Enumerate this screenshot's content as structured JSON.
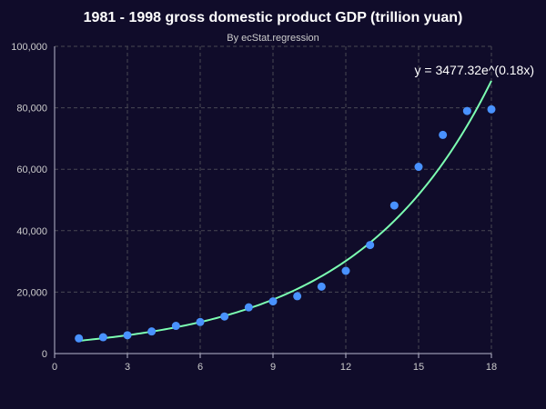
{
  "chart_data": {
    "type": "scatter",
    "title": "1981 - 1998 gross domestic product GDP (trillion yuan)",
    "subtitle": "By ecStat.regression",
    "xlabel": "",
    "ylabel": "",
    "xlim": [
      0,
      18
    ],
    "ylim": [
      0,
      100000
    ],
    "x_ticks": [
      "0",
      "3",
      "6",
      "9",
      "12",
      "15",
      "18"
    ],
    "y_ticks": [
      "0",
      "20,000",
      "40,000",
      "60,000",
      "80,000",
      "100,000"
    ],
    "grid": true,
    "grid_style": "dashed",
    "series": [
      {
        "type": "scatter",
        "color": "#4992ff",
        "points": [
          [
            1,
            4944.6
          ],
          [
            2,
            5312.8
          ],
          [
            3,
            5962.7
          ],
          [
            4,
            7208.1
          ],
          [
            5,
            9016.0
          ],
          [
            6,
            10275.2
          ],
          [
            7,
            12058.6
          ],
          [
            8,
            15042.8
          ],
          [
            9,
            16992.3
          ],
          [
            10,
            18667.8
          ],
          [
            11,
            21781.5
          ],
          [
            12,
            26923.5
          ],
          [
            13,
            35333.9
          ],
          [
            14,
            48197.9
          ],
          [
            15,
            60793.7
          ],
          [
            16,
            71176.6
          ],
          [
            17,
            78973.0
          ],
          [
            18,
            79500.0
          ]
        ]
      },
      {
        "type": "line",
        "color": "#7cffb2",
        "regression": {
          "kind": "exponential",
          "a": 3477.32,
          "b": 0.18
        },
        "x_range": [
          1,
          18
        ]
      }
    ],
    "annotation": "y = 3477.32e^(0.18x)"
  }
}
